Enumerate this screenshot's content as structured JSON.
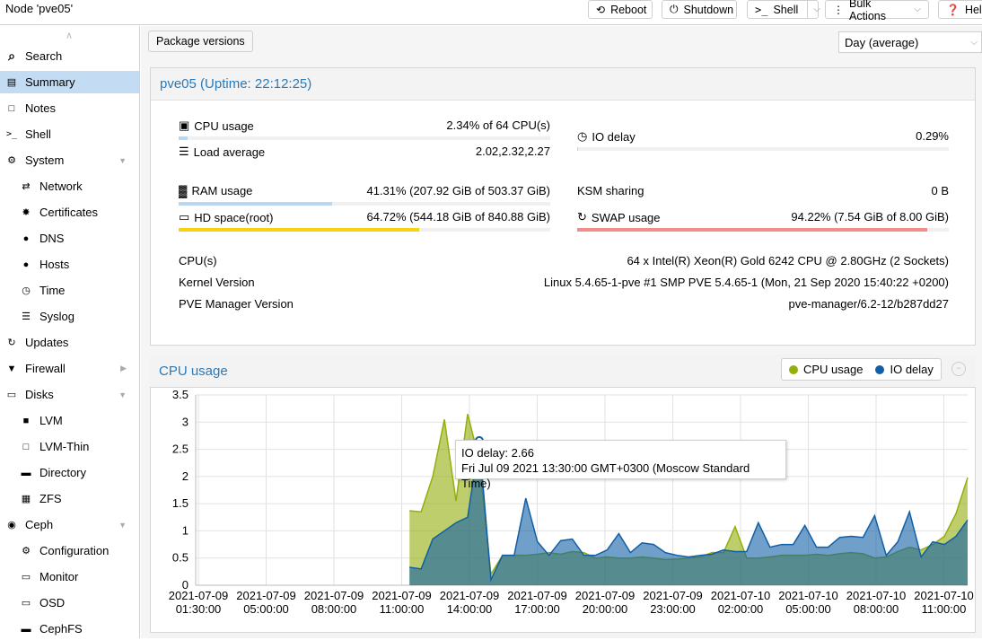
{
  "topbar": {
    "title": "Node 'pve05'",
    "buttons": {
      "reboot": "Reboot",
      "shutdown": "Shutdown",
      "shell": "Shell",
      "bulk": "Bulk Actions",
      "help": "Help"
    }
  },
  "sidebar": {
    "items": [
      {
        "label": "Search",
        "icon": "search-icon"
      },
      {
        "label": "Summary",
        "icon": "book-icon",
        "selected": true
      },
      {
        "label": "Notes",
        "icon": "note-icon"
      },
      {
        "label": "Shell",
        "icon": "terminal-icon"
      },
      {
        "label": "System",
        "icon": "cogs-icon",
        "expandable": "down"
      },
      {
        "label": "Network",
        "icon": "exchange-icon",
        "sub": true
      },
      {
        "label": "Certificates",
        "icon": "certificate-icon",
        "sub": true
      },
      {
        "label": "DNS",
        "icon": "globe-icon",
        "sub": true
      },
      {
        "label": "Hosts",
        "icon": "globe-icon",
        "sub": true
      },
      {
        "label": "Time",
        "icon": "clock-icon",
        "sub": true
      },
      {
        "label": "Syslog",
        "icon": "list-icon",
        "sub": true
      },
      {
        "label": "Updates",
        "icon": "refresh-icon"
      },
      {
        "label": "Firewall",
        "icon": "shield-icon",
        "expandable": "right"
      },
      {
        "label": "Disks",
        "icon": "hdd-icon",
        "expandable": "down"
      },
      {
        "label": "LVM",
        "icon": "square-icon",
        "sub": true
      },
      {
        "label": "LVM-Thin",
        "icon": "square-outline-icon",
        "sub": true
      },
      {
        "label": "Directory",
        "icon": "folder-icon",
        "sub": true
      },
      {
        "label": "ZFS",
        "icon": "th-large-icon",
        "sub": true
      },
      {
        "label": "Ceph",
        "icon": "ceph-icon",
        "expandable": "down"
      },
      {
        "label": "Configuration",
        "icon": "gear-icon",
        "sub": true
      },
      {
        "label": "Monitor",
        "icon": "desktop-icon",
        "sub": true
      },
      {
        "label": "OSD",
        "icon": "hdd-icon",
        "sub": true
      },
      {
        "label": "CephFS",
        "icon": "folder-icon",
        "sub": true
      }
    ]
  },
  "toolbar": {
    "package_versions": "Package versions",
    "timeframe": "Day (average)"
  },
  "status": {
    "title": "pve05 (Uptime: 22:12:25)",
    "cpu": {
      "label": "CPU usage",
      "value": "2.34% of 64 CPU(s)",
      "pct": 0.0234
    },
    "load": {
      "label": "Load average",
      "value": "2.02,2.32,2.27"
    },
    "iodelay": {
      "label": "IO delay",
      "value": "0.29%",
      "pct": 0.0029
    },
    "ram": {
      "label": "RAM usage",
      "value": "41.31% (207.92 GiB of 503.37 GiB)",
      "pct": 0.4131
    },
    "ksm": {
      "label": "KSM sharing",
      "value": "0 B"
    },
    "hd": {
      "label": "HD space(root)",
      "value": "64.72% (544.18 GiB of 840.88 GiB)",
      "pct": 0.6472
    },
    "swap": {
      "label": "SWAP usage",
      "value": "94.22% (7.54 GiB of 8.00 GiB)",
      "pct": 0.9422
    },
    "cpus": {
      "label": "CPU(s)",
      "value": "64 x Intel(R) Xeon(R) Gold 6242 CPU @ 2.80GHz (2 Sockets)"
    },
    "kernel": {
      "label": "Kernel Version",
      "value": "Linux 5.4.65-1-pve #1 SMP PVE 5.4.65-1 (Mon, 21 Sep 2020 15:40:22 +0200)"
    },
    "pve": {
      "label": "PVE Manager Version",
      "value": "pve-manager/6.2-12/b287dd27"
    },
    "colors": {
      "ram": "#b9d6f0",
      "hd": "#f5d213",
      "swap": "#f08c8c"
    }
  },
  "cpu_panel": {
    "title": "CPU usage",
    "legend": [
      {
        "label": "CPU usage",
        "color": "#94ae0a"
      },
      {
        "label": "IO delay",
        "color": "#115fa6"
      }
    ],
    "tooltip": {
      "line1": "IO delay: 2.66",
      "line2": "Fri Jul 09 2021 13:30:00 GMT+0300 (Moscow Standard Time)"
    }
  },
  "chart_data": {
    "type": "area",
    "title": "CPU usage",
    "ylim": [
      0,
      3.5
    ],
    "yticks": [
      "3.5",
      "3",
      "2.5",
      "2",
      "1.5",
      "1",
      "0.5",
      "0"
    ],
    "xticks": [
      [
        "2021-07-09",
        "01:30:00"
      ],
      [
        "2021-07-09",
        "05:00:00"
      ],
      [
        "2021-07-09",
        "08:00:00"
      ],
      [
        "2021-07-09",
        "11:00:00"
      ],
      [
        "2021-07-09",
        "14:00:00"
      ],
      [
        "2021-07-09",
        "17:00:00"
      ],
      [
        "2021-07-09",
        "20:00:00"
      ],
      [
        "2021-07-09",
        "23:00:00"
      ],
      [
        "2021-07-10",
        "02:00:00"
      ],
      [
        "2021-07-10",
        "05:00:00"
      ],
      [
        "2021-07-10",
        "08:00:00"
      ],
      [
        "2021-07-10",
        "11:00:00"
      ]
    ],
    "series": [
      {
        "name": "CPU usage",
        "color": "#94ae0a",
        "values": [
          1.37,
          1.35,
          2.0,
          3.05,
          1.55,
          3.15,
          2.3,
          0.2,
          0.55,
          0.55,
          0.55,
          0.57,
          0.6,
          0.57,
          0.62,
          0.6,
          0.5,
          0.52,
          0.5,
          0.5,
          0.52,
          0.5,
          0.47,
          0.48,
          0.5,
          0.52,
          0.6,
          0.6,
          1.08,
          0.5,
          0.5,
          0.52,
          0.55,
          0.55,
          0.55,
          0.57,
          0.55,
          0.58,
          0.6,
          0.58,
          0.5,
          0.52,
          0.62,
          0.7,
          0.65,
          0.75,
          0.9,
          1.32,
          1.98
        ]
      },
      {
        "name": "IO delay",
        "color": "#115fa6",
        "values": [
          0.33,
          0.3,
          0.85,
          1.0,
          1.15,
          1.25,
          2.66,
          0.1,
          0.55,
          0.55,
          1.6,
          0.8,
          0.55,
          0.82,
          0.85,
          0.55,
          0.55,
          0.65,
          0.95,
          0.6,
          0.78,
          0.75,
          0.6,
          0.55,
          0.52,
          0.55,
          0.57,
          0.65,
          0.62,
          0.62,
          1.15,
          0.7,
          0.75,
          0.75,
          1.1,
          0.7,
          0.7,
          0.88,
          0.9,
          0.88,
          1.28,
          0.55,
          0.8,
          1.35,
          0.52,
          0.8,
          0.75,
          0.9,
          1.2
        ]
      }
    ],
    "start_index_fraction": 0.277
  }
}
